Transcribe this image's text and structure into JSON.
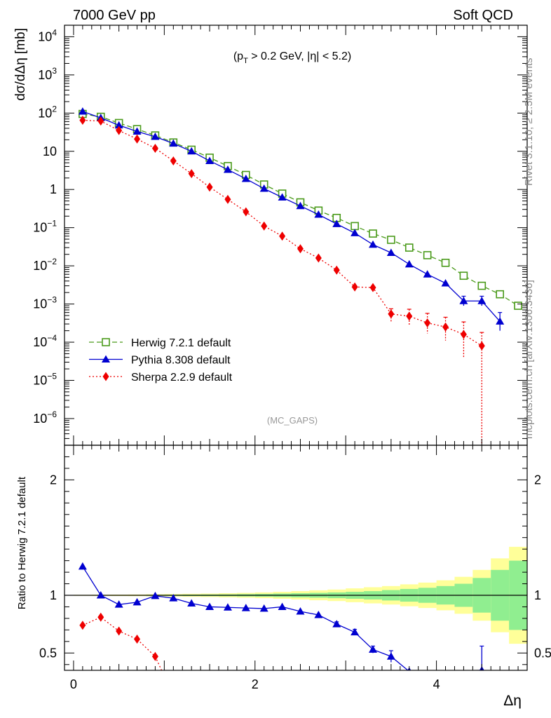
{
  "header": {
    "left": "7000 GeV pp",
    "right": "Soft QCD"
  },
  "side_labels": {
    "rivet": "Rivet 3.1.10, ≥ 2.5M events",
    "mcplots": "mcplots.cern.ch [arXiv:1306.3436]"
  },
  "annotation": {
    "cut": "(p_T > 0.2 GeV, |η| < 5.2)",
    "analysis": "(MC_GAPS)"
  },
  "chart_data": [
    {
      "type": "line",
      "panel": "main",
      "ylabel": "dσ/dΔη [mb]",
      "xlabel": "Δη",
      "yscale": "log",
      "xlim": [
        -0.1,
        5.0
      ],
      "ylim": [
        2e-07,
        20000
      ],
      "yticks": [
        "10^4",
        "10^3",
        "10^2",
        "10",
        "1",
        "10^-1",
        "10^-2",
        "10^-3",
        "10^-4",
        "10^-5",
        "10^-6"
      ],
      "legend": "lower-left",
      "series": [
        {
          "name": "Herwig 7.2.1 default",
          "color": "#4a9a1a",
          "marker": "open-square",
          "style": "dashed",
          "x": [
            0.1,
            0.3,
            0.5,
            0.7,
            0.9,
            1.1,
            1.3,
            1.5,
            1.7,
            1.9,
            2.1,
            2.3,
            2.5,
            2.7,
            2.9,
            3.1,
            3.3,
            3.5,
            3.7,
            3.9,
            4.1,
            4.3,
            4.5,
            4.7,
            4.9
          ],
          "y": [
            95,
            80,
            55,
            38,
            26,
            17,
            11,
            6.8,
            4.1,
            2.4,
            1.35,
            0.78,
            0.46,
            0.28,
            0.18,
            0.11,
            0.07,
            0.048,
            0.03,
            0.019,
            0.012,
            0.0055,
            0.003,
            0.0018,
            0.0009
          ]
        },
        {
          "name": "Pythia 8.308 default",
          "color": "#0000d0",
          "marker": "filled-triangle",
          "style": "solid",
          "x": [
            0.1,
            0.3,
            0.5,
            0.7,
            0.9,
            1.1,
            1.3,
            1.5,
            1.7,
            1.9,
            2.1,
            2.3,
            2.5,
            2.7,
            2.9,
            3.1,
            3.3,
            3.5,
            3.7,
            3.9,
            4.1,
            4.3,
            4.5,
            4.7
          ],
          "y": [
            110,
            75,
            48,
            33,
            24,
            16,
            10,
            5.6,
            3.3,
            1.9,
            1.05,
            0.62,
            0.37,
            0.22,
            0.125,
            0.072,
            0.036,
            0.022,
            0.011,
            0.006,
            0.0035,
            0.0012,
            0.0012,
            0.00035
          ],
          "yerr_low": [
            0,
            0,
            0,
            0,
            0,
            0,
            0,
            0,
            0,
            0,
            0,
            0,
            0,
            0,
            0,
            0,
            0,
            0,
            0,
            0,
            0,
            0.0003,
            0.0003,
            0.00015
          ],
          "yerr_high": [
            0,
            0,
            0,
            0,
            0,
            0,
            0,
            0,
            0,
            0,
            0,
            0,
            0,
            0,
            0,
            0,
            0,
            0,
            0,
            0,
            0,
            0.0004,
            0.0004,
            0.00025
          ]
        },
        {
          "name": "Sherpa 2.2.9 default",
          "color": "#ee0000",
          "marker": "filled-diamond",
          "style": "dotted",
          "x": [
            0.1,
            0.3,
            0.5,
            0.7,
            0.9,
            1.1,
            1.3,
            1.5,
            1.7,
            1.9,
            2.1,
            2.3,
            2.5,
            2.7,
            2.9,
            3.1,
            3.3,
            3.5,
            3.7,
            3.9,
            4.1,
            4.3,
            4.5
          ],
          "y": [
            65,
            62,
            35,
            21,
            12,
            5.6,
            2.6,
            1.15,
            0.55,
            0.26,
            0.11,
            0.06,
            0.028,
            0.016,
            0.0077,
            0.0028,
            0.0027,
            0.00055,
            0.00048,
            0.00032,
            0.00025,
            0.00016,
            8e-05
          ],
          "yerr_low": [
            0,
            0,
            0,
            0,
            0,
            0,
            0,
            0,
            0,
            0,
            0,
            0,
            0,
            0,
            0,
            0,
            0,
            0.0002,
            0.0002,
            0.00015,
            0.00014,
            0.00012,
            7.99e-05
          ],
          "yerr_high": [
            0,
            0,
            0,
            0,
            0,
            0,
            0,
            0,
            0,
            0,
            0,
            0,
            0,
            0,
            0,
            0,
            0,
            0.0002,
            0.00025,
            0.00025,
            0.0002,
            0.00018,
            0.0001
          ]
        }
      ]
    },
    {
      "type": "line",
      "panel": "ratio",
      "ylabel": "Ratio to Herwig 7.2.1 default",
      "xlabel": "Δη",
      "xlim": [
        -0.1,
        5.0
      ],
      "ylim": [
        0.35,
        2.3
      ],
      "yticks": [
        0.5,
        1,
        2
      ],
      "xticks": [
        0,
        2,
        4
      ],
      "reference": 1,
      "uncertainty_band": {
        "bin_edges": [
          0,
          0.2,
          0.4,
          0.6,
          0.8,
          1.0,
          1.2,
          1.4,
          1.6,
          1.8,
          2.0,
          2.2,
          2.4,
          2.6,
          2.8,
          3.0,
          3.2,
          3.4,
          3.6,
          3.8,
          4.0,
          4.2,
          4.4,
          4.6,
          4.8,
          5.0
        ],
        "stat_half_width": [
          0.002,
          0.002,
          0.003,
          0.003,
          0.004,
          0.005,
          0.006,
          0.007,
          0.008,
          0.01,
          0.012,
          0.015,
          0.018,
          0.021,
          0.025,
          0.03,
          0.036,
          0.045,
          0.055,
          0.065,
          0.08,
          0.1,
          0.15,
          0.22,
          0.3
        ],
        "total_half_width": [
          0.004,
          0.005,
          0.006,
          0.007,
          0.009,
          0.011,
          0.013,
          0.015,
          0.018,
          0.021,
          0.025,
          0.03,
          0.036,
          0.043,
          0.05,
          0.06,
          0.07,
          0.08,
          0.095,
          0.11,
          0.13,
          0.16,
          0.22,
          0.32,
          0.42
        ],
        "stat_color": "#90ee90",
        "total_color": "#ffff99"
      },
      "series": [
        {
          "name": "Pythia 8.308 default",
          "color": "#0000d0",
          "marker": "filled-triangle",
          "style": "solid",
          "x": [
            0.1,
            0.3,
            0.5,
            0.7,
            0.9,
            1.1,
            1.3,
            1.5,
            1.7,
            1.9,
            2.1,
            2.3,
            2.5,
            2.7,
            2.9,
            3.1,
            3.3,
            3.5,
            3.7,
            4.5
          ],
          "y": [
            1.25,
            1.0,
            0.92,
            0.94,
            0.995,
            0.975,
            0.93,
            0.9,
            0.895,
            0.89,
            0.885,
            0.9,
            0.86,
            0.83,
            0.75,
            0.68,
            0.53,
            0.47,
            0.34,
            0.35
          ],
          "yerr_low": [
            0,
            0,
            0,
            0,
            0,
            0,
            0,
            0,
            0,
            0,
            0,
            0,
            0,
            0,
            0.02,
            0.025,
            0.03,
            0.05,
            0,
            0.1
          ],
          "yerr_high": [
            0,
            0,
            0,
            0,
            0,
            0,
            0,
            0,
            0,
            0,
            0,
            0,
            0,
            0,
            0.02,
            0.025,
            0.03,
            0.05,
            0,
            0.21
          ]
        },
        {
          "name": "Sherpa 2.2.9 default",
          "color": "#ee0000",
          "marker": "filled-diamond",
          "style": "dotted",
          "x": [
            0.1,
            0.3,
            0.5,
            0.7,
            0.9,
            1.0
          ],
          "y": [
            0.74,
            0.81,
            0.69,
            0.62,
            0.47,
            0.3
          ]
        }
      ]
    }
  ]
}
